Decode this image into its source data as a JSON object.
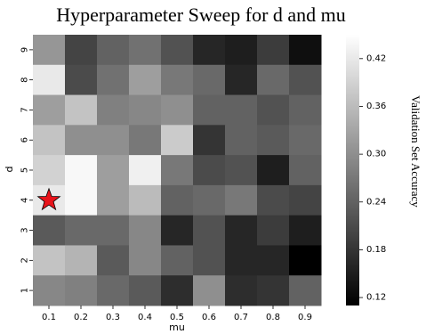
{
  "chart_data": {
    "type": "heatmap",
    "title": "Hyperparameter Sweep for d and mu",
    "xlabel": "mu",
    "ylabel": "d",
    "colorbar_label": "Validation Set Accuracy",
    "x_categories": [
      "0.1",
      "0.2",
      "0.3",
      "0.4",
      "0.5",
      "0.6",
      "0.7",
      "0.8",
      "0.9"
    ],
    "y_categories": [
      "9",
      "8",
      "7",
      "6",
      "5",
      "4",
      "3",
      "2",
      "1"
    ],
    "colorbar_ticks": [
      "0.42",
      "0.36",
      "0.30",
      "0.24",
      "0.18",
      "0.12"
    ],
    "colorbar_range": [
      0.11,
      0.45
    ],
    "colormap": "grays (black = low, white = high)",
    "values": [
      [
        0.31,
        0.2,
        0.24,
        0.26,
        0.22,
        0.16,
        0.15,
        0.19,
        0.13
      ],
      [
        0.42,
        0.21,
        0.26,
        0.32,
        0.27,
        0.25,
        0.16,
        0.25,
        0.22
      ],
      [
        0.32,
        0.37,
        0.28,
        0.29,
        0.3,
        0.24,
        0.24,
        0.22,
        0.24
      ],
      [
        0.37,
        0.3,
        0.3,
        0.27,
        0.38,
        0.18,
        0.24,
        0.23,
        0.25
      ],
      [
        0.39,
        0.44,
        0.32,
        0.43,
        0.27,
        0.21,
        0.22,
        0.15,
        0.24
      ],
      [
        0.42,
        0.44,
        0.32,
        0.36,
        0.24,
        0.25,
        0.27,
        0.21,
        0.2
      ],
      [
        0.23,
        0.25,
        0.25,
        0.29,
        0.16,
        0.22,
        0.16,
        0.19,
        0.15
      ],
      [
        0.37,
        0.35,
        0.23,
        0.29,
        0.24,
        0.22,
        0.16,
        0.16,
        0.11
      ],
      [
        0.29,
        0.28,
        0.25,
        0.23,
        0.17,
        0.3,
        0.17,
        0.18,
        0.24
      ]
    ],
    "marker": {
      "shape": "star",
      "color": "#e8141b",
      "x": "0.1",
      "y": "4"
    }
  }
}
